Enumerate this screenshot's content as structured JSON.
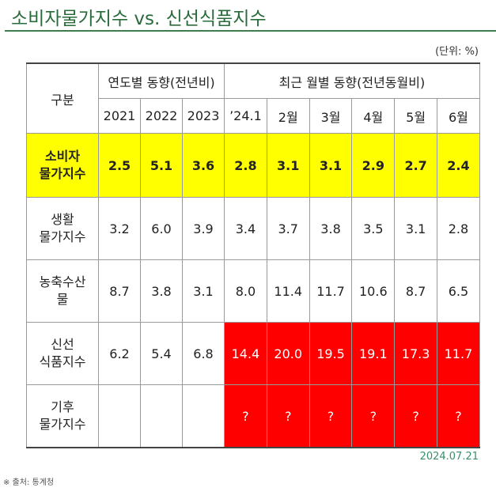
{
  "title": "소비자물가지수 vs. 신선식품지수",
  "unit": "(단위: %)",
  "header": {
    "category": "구분",
    "annual_group": "연도별 동향(전년비)",
    "monthly_group": "최근 월별 동향(전년동월비)",
    "columns": [
      "2021",
      "2022",
      "2023",
      "’24.1",
      "2월",
      "3월",
      "4월",
      "5월",
      "6월"
    ]
  },
  "rows": [
    {
      "label_line1": "소비자",
      "label_line2": "물가지수",
      "values": [
        "2.5",
        "5.1",
        "3.6",
        "2.8",
        "3.1",
        "3.1",
        "2.9",
        "2.7",
        "2.4"
      ]
    },
    {
      "label_line1": "생활",
      "label_line2": "물가지수",
      "values": [
        "3.2",
        "6.0",
        "3.9",
        "3.4",
        "3.7",
        "3.8",
        "3.5",
        "3.1",
        "2.8"
      ]
    },
    {
      "label_line1": "농축수산",
      "label_line2": "물",
      "values": [
        "8.7",
        "3.8",
        "3.1",
        "8.0",
        "11.4",
        "11.7",
        "10.6",
        "8.7",
        "6.5"
      ]
    },
    {
      "label_line1": "신선",
      "label_line2": "식품지수",
      "values": [
        "6.2",
        "5.4",
        "6.8",
        "14.4",
        "20.0",
        "19.5",
        "19.1",
        "17.3",
        "11.7"
      ]
    },
    {
      "label_line1": "기후",
      "label_line2": "물가지수",
      "values": [
        "",
        "",
        "",
        "?",
        "?",
        "?",
        "?",
        "?",
        "?"
      ]
    }
  ],
  "date": "2024.07.21",
  "source": "※ 출처: 통계청",
  "colors": {
    "highlight_yellow": "#ffff00",
    "highlight_red": "#ff0000",
    "title_green": "#2a6b3c"
  }
}
